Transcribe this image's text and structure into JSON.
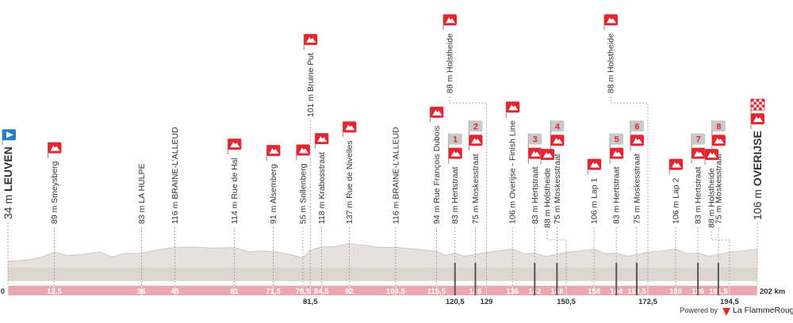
{
  "chart_data": {
    "type": "profile",
    "start": {
      "altitude": "34 m",
      "name": "LEUVEN"
    },
    "finish": {
      "altitude": "106 m",
      "name": "OVERIJSE"
    },
    "xlim": [
      0,
      202
    ],
    "ylim": [
      0,
      213
    ],
    "color": "#e6e1da",
    "xticks": [
      0,
      {
        "value": 12.5,
        "label": "12,5"
      },
      36,
      45,
      61,
      {
        "value": 71.5,
        "label": "71,5"
      },
      {
        "value": 79.5,
        "label": "79,5"
      },
      {
        "value": 81.5,
        "label": "81,5"
      },
      {
        "value": 84.5,
        "label": "84,5"
      },
      92,
      {
        "value": 104.5,
        "label": "104,5"
      },
      {
        "value": 115.5,
        "label": "115,5"
      },
      {
        "value": 120.5,
        "label": "120,5"
      },
      126,
      129,
      136,
      142,
      148,
      {
        "value": 150.5,
        "label": "150,5"
      },
      158,
      164,
      {
        "value": 169.5,
        "label": "169,5"
      },
      {
        "value": 172.5,
        "label": "172,5"
      },
      180,
      186,
      {
        "value": 191.5,
        "label": "191,5"
      },
      {
        "value": 194.5,
        "label": "194,5"
      },
      {
        "value": 202,
        "label": "202 km"
      }
    ],
    "x": [
      0,
      3,
      6,
      9,
      12.5,
      16,
      20,
      25,
      28,
      31,
      36,
      40,
      45,
      50,
      55,
      61,
      65,
      68,
      71.5,
      75,
      79.5,
      81.5,
      84.5,
      88,
      92,
      97,
      100,
      104.5,
      110,
      115.5,
      118,
      120.5,
      123,
      126,
      129,
      132,
      136,
      139,
      142,
      145,
      148,
      150.5,
      154,
      158,
      161,
      164,
      167,
      169.5,
      172.5,
      176,
      180,
      183,
      186,
      189,
      191.5,
      194.5,
      198,
      202
    ],
    "values": [
      34,
      40,
      45,
      60,
      89,
      70,
      75,
      90,
      60,
      80,
      83,
      100,
      116,
      118,
      112,
      114,
      90,
      95,
      91,
      80,
      55,
      101,
      118,
      120,
      137,
      125,
      115,
      116,
      105,
      94,
      70,
      83,
      65,
      75,
      88,
      95,
      106,
      80,
      83,
      65,
      75,
      88,
      95,
      106,
      80,
      83,
      65,
      75,
      88,
      95,
      106,
      80,
      83,
      65,
      75,
      88,
      95,
      106
    ],
    "markers": [
      {
        "km": 12.5,
        "label": "89 m Smeysberg",
        "icon": "climb"
      },
      {
        "km": 36,
        "label": "83 m LA HULPE"
      },
      {
        "km": 45,
        "label": "116 m BRAINE-L'ALLEUD"
      },
      {
        "km": 61,
        "label": "114 m Rue de Hal",
        "icon": "climb"
      },
      {
        "km": 71.5,
        "label": "91 m Alsemberg",
        "icon": "climb"
      },
      {
        "km": 79.5,
        "label": "55 m Sollenberg",
        "icon": "climb"
      },
      {
        "km": 81.5,
        "label": "101 m Bruine Put",
        "icon": "climb"
      },
      {
        "km": 84.5,
        "label": "118 m Krabosstraat",
        "icon": "climb"
      },
      {
        "km": 92,
        "label": "137 m Rue de Nivelles",
        "icon": "climb"
      },
      {
        "km": 104.5,
        "label": "116 m BRAINE-L'ALLEUD"
      },
      {
        "km": 115.5,
        "label": "94 m Rue François Dubois",
        "icon": "climb"
      },
      {
        "km": 120.5,
        "label": "83 m Hertstraat",
        "icon": "climb",
        "sector": "1"
      },
      {
        "km": 126,
        "label": "75 m Moskesstraat",
        "icon": "climb",
        "sector": "2"
      },
      {
        "km": 129,
        "label": "88 m Holstheide",
        "icon": "climb"
      },
      {
        "km": 136,
        "label": "106 m Overijse - Finish Line",
        "icon": "climb"
      },
      {
        "km": 142,
        "label": "83 m Hertstraat",
        "icon": "climb",
        "sector": "3"
      },
      {
        "km": 148,
        "label": "75 m Moskesstraat",
        "icon": "climb",
        "sector": "4"
      },
      {
        "km": 150.5,
        "label": "88 m Holstheide",
        "icon": "climb"
      },
      {
        "km": 158,
        "label": "106 m Lap 1",
        "icon": "climb"
      },
      {
        "km": 164,
        "label": "83 m Hertstraat",
        "icon": "climb",
        "sector": "5"
      },
      {
        "km": 169.5,
        "label": "75 m Moskesstraat",
        "icon": "climb",
        "sector": "6"
      },
      {
        "km": 172.5,
        "label": "88 m Holstheide",
        "icon": "climb"
      },
      {
        "km": 180,
        "label": "106 m Lap 2",
        "icon": "climb"
      },
      {
        "km": 186,
        "label": "83 m Hertstraat",
        "icon": "climb",
        "sector": "7"
      },
      {
        "km": 191.5,
        "label": "75 m Moskesstraat",
        "icon": "climb",
        "sector": "8"
      },
      {
        "km": 194.5,
        "label": "88 m Holstheide",
        "icon": "climb"
      }
    ]
  },
  "footer": {
    "powered_by": "Powered by",
    "brand": "La FlammeRouge"
  }
}
